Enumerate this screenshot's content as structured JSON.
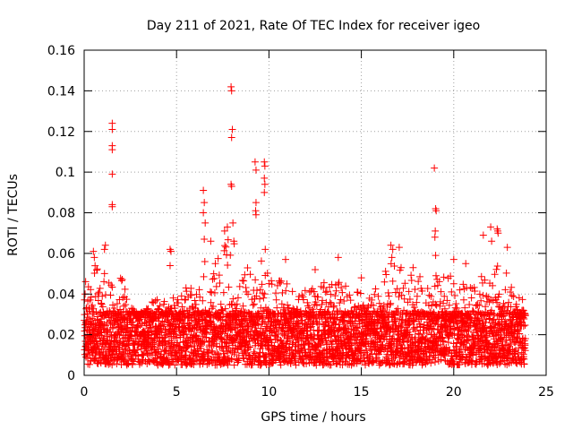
{
  "chart_data": {
    "type": "scatter",
    "title": "Day 211 of 2021, Rate Of TEC Index for receiver igeo",
    "xlabel": "GPS time / hours",
    "ylabel": "ROTI / TECUs",
    "xlim": [
      0,
      25
    ],
    "ylim": [
      0,
      0.16
    ],
    "xticks": [
      "0",
      "5",
      "10",
      "15",
      "20",
      "25"
    ],
    "yticks": [
      "0",
      "0.02",
      "0.04",
      "0.06",
      "0.08",
      "0.1",
      "0.12",
      "0.14",
      "0.16"
    ],
    "grid": true,
    "marker": "+",
    "color": "#ff0000",
    "series": [
      {
        "name": "",
        "points": [
          [
            1.52,
            0.124
          ],
          [
            1.52,
            0.121
          ],
          [
            1.52,
            0.113
          ],
          [
            1.52,
            0.111
          ],
          [
            1.52,
            0.099
          ],
          [
            1.52,
            0.084
          ],
          [
            1.52,
            0.083
          ],
          [
            7.95,
            0.142
          ],
          [
            7.98,
            0.14
          ],
          [
            8.02,
            0.121
          ],
          [
            7.98,
            0.117
          ],
          [
            7.95,
            0.094
          ],
          [
            7.98,
            0.093
          ],
          [
            9.25,
            0.105
          ],
          [
            9.3,
            0.101
          ],
          [
            9.3,
            0.085
          ],
          [
            9.28,
            0.081
          ],
          [
            9.3,
            0.079
          ],
          [
            9.75,
            0.105
          ],
          [
            9.78,
            0.103
          ],
          [
            9.75,
            0.097
          ],
          [
            9.78,
            0.094
          ],
          [
            9.75,
            0.09
          ],
          [
            6.45,
            0.091
          ],
          [
            6.5,
            0.085
          ],
          [
            6.45,
            0.08
          ],
          [
            6.55,
            0.075
          ],
          [
            6.5,
            0.067
          ],
          [
            18.95,
            0.102
          ],
          [
            19.02,
            0.082
          ],
          [
            19.05,
            0.081
          ],
          [
            19.0,
            0.071
          ],
          [
            18.98,
            0.068
          ],
          [
            19.02,
            0.059
          ],
          [
            22.0,
            0.073
          ],
          [
            22.05,
            0.066
          ],
          [
            22.35,
            0.072
          ],
          [
            22.38,
            0.071
          ],
          [
            22.4,
            0.07
          ],
          [
            22.9,
            0.063
          ],
          [
            21.6,
            0.069
          ],
          [
            16.6,
            0.064
          ],
          [
            16.7,
            0.062
          ],
          [
            17.05,
            0.063
          ],
          [
            16.65,
            0.058
          ],
          [
            7.6,
            0.071
          ],
          [
            7.75,
            0.073
          ],
          [
            8.05,
            0.075
          ],
          [
            8.1,
            0.066
          ],
          [
            4.65,
            0.062
          ],
          [
            4.7,
            0.061
          ],
          [
            4.65,
            0.054
          ],
          [
            1.15,
            0.064
          ],
          [
            1.1,
            0.062
          ],
          [
            0.5,
            0.061
          ],
          [
            0.55,
            0.058
          ],
          [
            6.85,
            0.066
          ],
          [
            7.1,
            0.055
          ],
          [
            9.8,
            0.062
          ],
          [
            10.9,
            0.057
          ],
          [
            13.75,
            0.058
          ],
          [
            20.0,
            0.057
          ],
          [
            20.65,
            0.055
          ],
          [
            15.0,
            0.048
          ],
          [
            12.5,
            0.052
          ],
          [
            17.8,
            0.053
          ]
        ]
      }
    ],
    "bulk_band": {
      "typical_range": [
        0.005,
        0.03
      ],
      "envelope": [
        [
          0.0,
          0.05
        ],
        [
          0.5,
          0.055
        ],
        [
          1.0,
          0.06
        ],
        [
          1.5,
          0.045
        ],
        [
          2.0,
          0.05
        ],
        [
          2.5,
          0.035
        ],
        [
          3.0,
          0.03
        ],
        [
          3.5,
          0.035
        ],
        [
          4.0,
          0.04
        ],
        [
          4.5,
          0.035
        ],
        [
          5.0,
          0.04
        ],
        [
          5.5,
          0.045
        ],
        [
          6.0,
          0.045
        ],
        [
          6.5,
          0.06
        ],
        [
          7.0,
          0.05
        ],
        [
          7.5,
          0.065
        ],
        [
          8.0,
          0.07
        ],
        [
          8.5,
          0.05
        ],
        [
          9.0,
          0.055
        ],
        [
          9.5,
          0.06
        ],
        [
          10.0,
          0.05
        ],
        [
          10.5,
          0.05
        ],
        [
          11.0,
          0.045
        ],
        [
          11.5,
          0.04
        ],
        [
          12.0,
          0.045
        ],
        [
          12.5,
          0.045
        ],
        [
          13.0,
          0.05
        ],
        [
          13.5,
          0.045
        ],
        [
          14.0,
          0.05
        ],
        [
          14.5,
          0.045
        ],
        [
          15.0,
          0.045
        ],
        [
          15.5,
          0.04
        ],
        [
          16.0,
          0.045
        ],
        [
          16.5,
          0.055
        ],
        [
          17.0,
          0.055
        ],
        [
          17.5,
          0.05
        ],
        [
          18.0,
          0.05
        ],
        [
          18.5,
          0.05
        ],
        [
          19.0,
          0.055
        ],
        [
          19.5,
          0.05
        ],
        [
          20.0,
          0.055
        ],
        [
          20.5,
          0.045
        ],
        [
          21.0,
          0.045
        ],
        [
          21.5,
          0.05
        ],
        [
          22.0,
          0.055
        ],
        [
          22.5,
          0.06
        ],
        [
          23.0,
          0.05
        ],
        [
          23.5,
          0.045
        ],
        [
          23.9,
          0.04
        ]
      ]
    }
  }
}
